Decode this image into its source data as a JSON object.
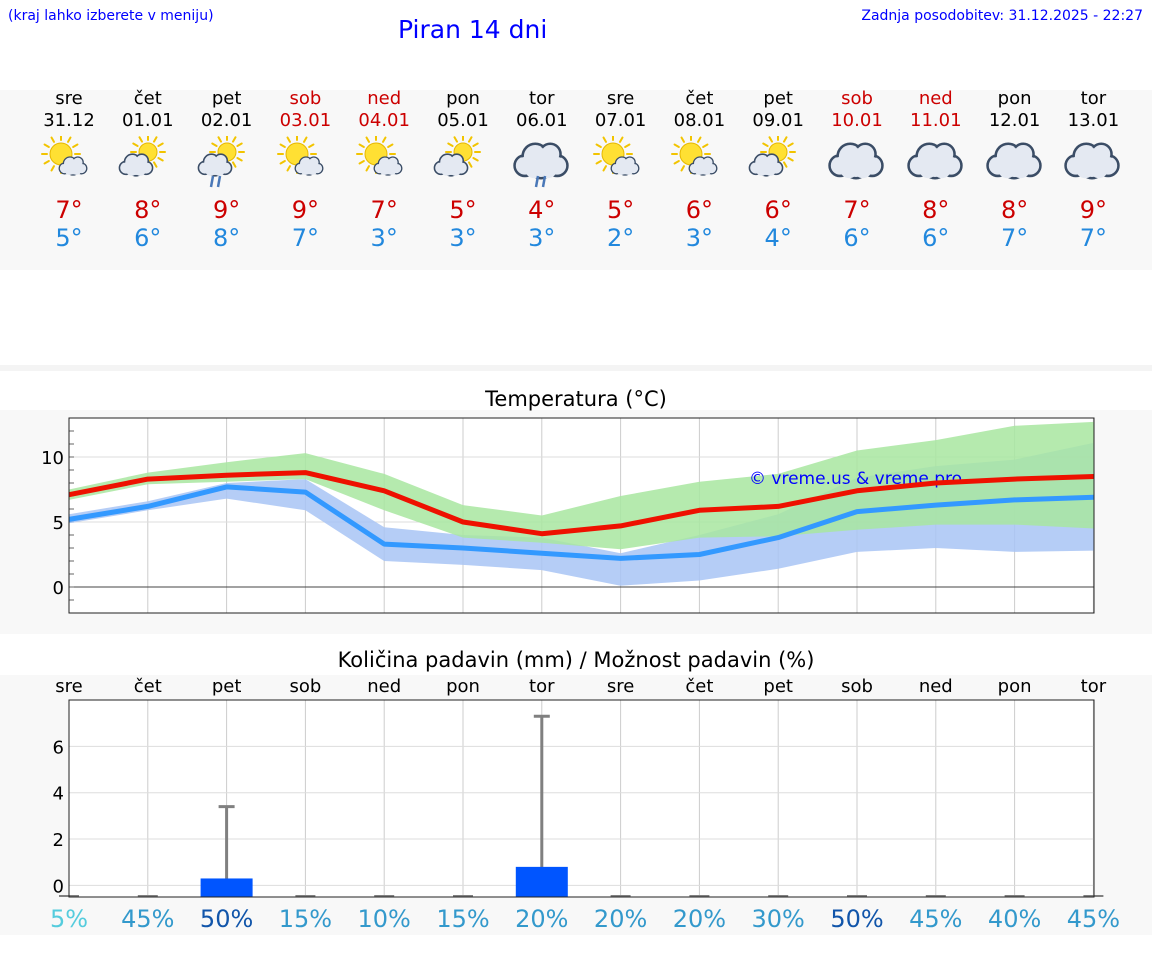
{
  "header": {
    "hint": "(kraj lahko izberete v meniju)",
    "title": "Piran 14 dni",
    "updated": "Zadnja posodobitev: 31.12.2025 - 22:27"
  },
  "colors": {
    "weekday": "#000000",
    "weekend": "#cc0000",
    "tmax": "#cc0000",
    "tmin": "#2288dd",
    "link": "#0000ff",
    "max_line": "#ee1100",
    "min_line": "#3399ff",
    "max_band": "#a8e6a0",
    "min_band": "#a8c4f4",
    "precip_bar": "#0055ff"
  },
  "days": [
    {
      "dn": "sre",
      "date": "31.12",
      "icon": "sun-cloud-icon",
      "max": "7°",
      "min": "5°",
      "weekend": false
    },
    {
      "dn": "čet",
      "date": "01.01",
      "icon": "cloud-sun-icon",
      "max": "8°",
      "min": "6°",
      "weekend": false
    },
    {
      "dn": "pet",
      "date": "02.01",
      "icon": "cloud-sun-rain-icon",
      "max": "9°",
      "min": "8°",
      "weekend": false
    },
    {
      "dn": "sob",
      "date": "03.01",
      "icon": "sun-cloud-icon",
      "max": "9°",
      "min": "7°",
      "weekend": true
    },
    {
      "dn": "ned",
      "date": "04.01",
      "icon": "sun-cloud-icon",
      "max": "7°",
      "min": "3°",
      "weekend": true
    },
    {
      "dn": "pon",
      "date": "05.01",
      "icon": "cloud-sun-icon",
      "max": "5°",
      "min": "3°",
      "weekend": false
    },
    {
      "dn": "tor",
      "date": "06.01",
      "icon": "cloud-rain-icon",
      "max": "4°",
      "min": "3°",
      "weekend": false
    },
    {
      "dn": "sre",
      "date": "07.01",
      "icon": "sun-cloud-icon",
      "max": "5°",
      "min": "2°",
      "weekend": false
    },
    {
      "dn": "čet",
      "date": "08.01",
      "icon": "sun-cloud-icon",
      "max": "6°",
      "min": "3°",
      "weekend": false
    },
    {
      "dn": "pet",
      "date": "09.01",
      "icon": "cloud-sun-icon",
      "max": "6°",
      "min": "4°",
      "weekend": false
    },
    {
      "dn": "sob",
      "date": "10.01",
      "icon": "cloud-icon",
      "max": "7°",
      "min": "6°",
      "weekend": true
    },
    {
      "dn": "ned",
      "date": "11.01",
      "icon": "cloud-icon",
      "max": "8°",
      "min": "6°",
      "weekend": true
    },
    {
      "dn": "pon",
      "date": "12.01",
      "icon": "cloud-icon",
      "max": "8°",
      "min": "7°",
      "weekend": false
    },
    {
      "dn": "tor",
      "date": "13.01",
      "icon": "cloud-icon",
      "max": "9°",
      "min": "7°",
      "weekend": false
    }
  ],
  "chart_data": [
    {
      "type": "line",
      "title": "Temperatura (°C)",
      "watermark": "© vreme.us & vreme.pro",
      "x": [
        0,
        1,
        2,
        3,
        4,
        5,
        6,
        7,
        8,
        9,
        10,
        11,
        12,
        13
      ],
      "ylim": [
        -2,
        13
      ],
      "yticks": [
        0,
        5,
        10
      ],
      "grid": true,
      "series": [
        {
          "name": "max",
          "values": [
            7.1,
            8.3,
            8.6,
            8.8,
            7.4,
            5.0,
            4.1,
            4.7,
            5.9,
            6.2,
            7.4,
            8.0,
            8.3,
            8.5
          ],
          "band_low": [
            6.7,
            7.9,
            8.1,
            8.3,
            5.9,
            3.8,
            3.4,
            2.9,
            3.8,
            3.9,
            4.4,
            4.8,
            4.8,
            4.5
          ],
          "band_high": [
            7.5,
            8.8,
            9.6,
            10.3,
            8.7,
            6.3,
            5.5,
            7.0,
            8.1,
            8.7,
            10.5,
            11.3,
            12.4,
            12.7
          ]
        },
        {
          "name": "min",
          "values": [
            5.2,
            6.2,
            7.7,
            7.3,
            3.3,
            3.0,
            2.6,
            2.2,
            2.5,
            3.8,
            5.8,
            6.3,
            6.7,
            6.9
          ],
          "band_low": [
            4.9,
            5.9,
            6.8,
            5.9,
            2.0,
            1.7,
            1.3,
            0.1,
            0.5,
            1.4,
            2.7,
            3.0,
            2.7,
            2.8
          ],
          "band_high": [
            5.6,
            6.6,
            8.0,
            8.3,
            4.6,
            4.0,
            3.8,
            2.6,
            4.0,
            5.6,
            8.4,
            9.3,
            9.8,
            11.1
          ]
        }
      ]
    },
    {
      "type": "bar",
      "title": "Količina padavin (mm) / Možnost padavin (%)",
      "categories": [
        "sre",
        "čet",
        "pet",
        "sob",
        "ned",
        "pon",
        "tor",
        "sre",
        "čet",
        "pet",
        "sob",
        "ned",
        "pon",
        "tor"
      ],
      "values": [
        0,
        0,
        0.3,
        0,
        0,
        0,
        0.8,
        0,
        0,
        0,
        0,
        0,
        0,
        0
      ],
      "max_values": [
        0,
        0,
        3.4,
        0,
        0,
        0,
        7.3,
        0,
        0,
        0,
        0,
        0,
        0,
        0
      ],
      "chance": [
        "5%",
        "45%",
        "50%",
        "15%",
        "10%",
        "15%",
        "20%",
        "20%",
        "20%",
        "30%",
        "50%",
        "45%",
        "40%",
        "45%"
      ],
      "chance_colors": [
        "#55ccdd",
        "#3399cc",
        "#1155aa",
        "#3399cc",
        "#3399cc",
        "#3399cc",
        "#3399cc",
        "#3399cc",
        "#3399cc",
        "#3399cc",
        "#1155aa",
        "#3399cc",
        "#3399cc",
        "#3399cc"
      ],
      "ylim": [
        -0.5,
        8
      ],
      "yticks": [
        0,
        2,
        4,
        6
      ]
    }
  ]
}
